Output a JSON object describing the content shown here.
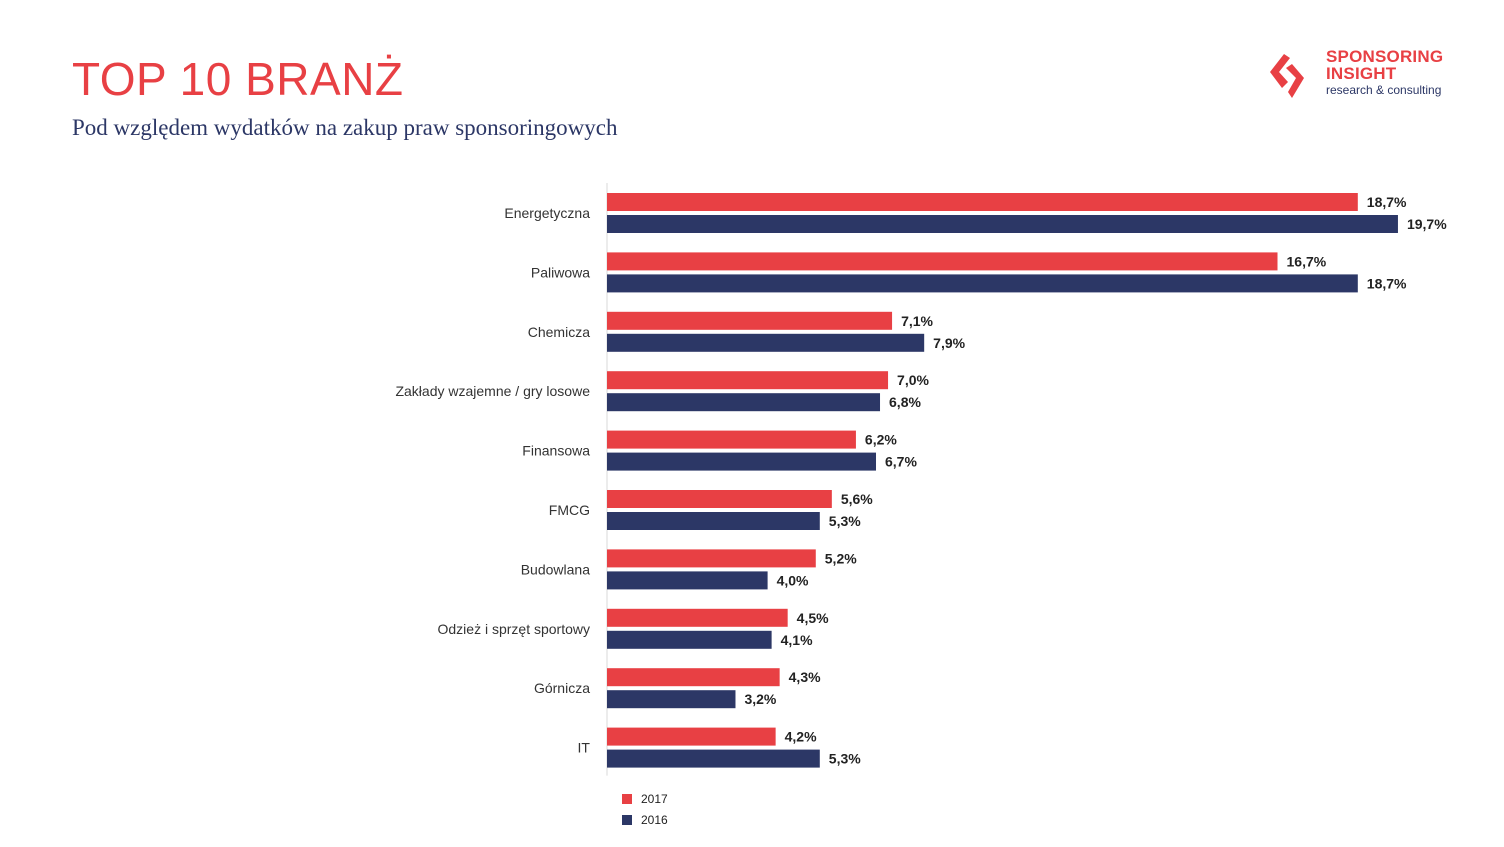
{
  "header": {
    "title": "TOP 10 BRANŻ",
    "subtitle": "Pod względem wydatków na zakup praw sponsoringowych"
  },
  "logo": {
    "line1": "SPONSORING",
    "line2": "INSIGHT",
    "line3": "research & consulting"
  },
  "colors": {
    "accent_red": "#e84044",
    "navy": "#2c3766",
    "axis": "#d9d9d9"
  },
  "chart_data": {
    "type": "bar",
    "orientation": "horizontal",
    "title": "TOP 10 BRANŻ",
    "xlabel": "",
    "ylabel": "",
    "xlim": [
      0,
      21
    ],
    "grid": false,
    "legend_position": "bottom-left",
    "categories": [
      "Energetyczna",
      "Paliwowa",
      "Chemicza",
      "Zakłady wzajemne / gry losowe",
      "Finansowa",
      "FMCG",
      "Budowlana",
      "Odzież i sprzęt sportowy",
      "Górnicza",
      "IT"
    ],
    "series": [
      {
        "name": "2017",
        "color": "#e84044",
        "values": [
          18.7,
          16.7,
          7.1,
          7.0,
          6.2,
          5.6,
          5.2,
          4.5,
          4.3,
          4.2
        ],
        "labels": [
          "18,7%",
          "16,7%",
          "7,1%",
          "7,0%",
          "6,2%",
          "5,6%",
          "5,2%",
          "4,5%",
          "4,3%",
          "4,2%"
        ]
      },
      {
        "name": "2016",
        "color": "#2c3766",
        "values": [
          19.7,
          18.7,
          7.9,
          6.8,
          6.7,
          5.3,
          4.0,
          4.1,
          3.2,
          5.3
        ],
        "labels": [
          "19,7%",
          "18,7%",
          "7,9%",
          "6,8%",
          "6,7%",
          "5,3%",
          "4,0%",
          "4,1%",
          "3,2%",
          "5,3%"
        ]
      }
    ]
  }
}
